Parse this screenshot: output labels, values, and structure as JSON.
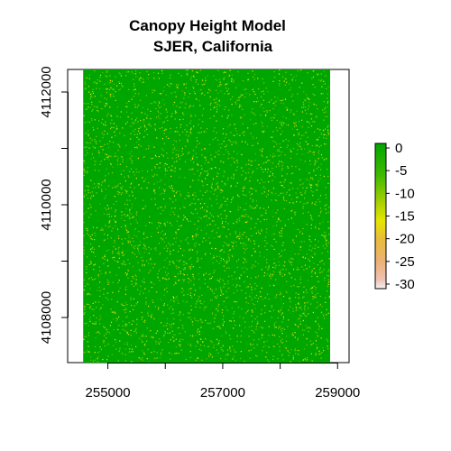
{
  "chart_data": {
    "type": "heatmap",
    "title": "Canopy Height Model",
    "subtitle": "SJER, California",
    "xlabel": "",
    "ylabel": "",
    "xlim": [
      254300,
      259200
    ],
    "ylim": [
      4107200,
      4112400
    ],
    "x_extent": [
      254570,
      258870
    ],
    "y_extent": [
      4107200,
      4112400
    ],
    "x_ticks": [
      255000,
      257000,
      259000
    ],
    "x_tick_labels": [
      "255000",
      "257000",
      "259000"
    ],
    "x_minor_ticks": [
      256000,
      258000
    ],
    "y_ticks": [
      4108000,
      4110000,
      4112000
    ],
    "y_tick_labels": [
      "4108000",
      "4110000",
      "4112000"
    ],
    "y_minor_ticks": [
      4109000,
      4111000
    ],
    "base_value": 0,
    "speckle_values": [
      -3,
      -8,
      -14
    ],
    "legend": {
      "ticks": [
        0,
        -5,
        -10,
        -15,
        -20,
        -25,
        -30
      ],
      "tick_labels": [
        "0",
        "-5",
        "-10",
        "-15",
        "-20",
        "-25",
        "-30"
      ],
      "range": [
        -31,
        1
      ],
      "placement": "right",
      "stops": [
        {
          "value": 1,
          "color": "#00a600"
        },
        {
          "value": -6,
          "color": "#3fba00"
        },
        {
          "value": -12,
          "color": "#a8d000"
        },
        {
          "value": -16,
          "color": "#e6e600"
        },
        {
          "value": -20,
          "color": "#e9bd3a"
        },
        {
          "value": -25,
          "color": "#ecb176"
        },
        {
          "value": -29,
          "color": "#efc2b3"
        },
        {
          "value": -31,
          "color": "#f2f2f2"
        }
      ]
    },
    "colors": {
      "canopy": "#00a600",
      "speckle_light": "#8fd000",
      "speckle_yellow": "#e6e600"
    }
  }
}
